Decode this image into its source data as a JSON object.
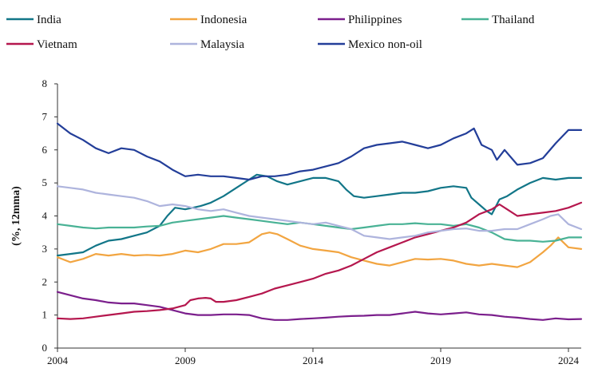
{
  "chart_data": {
    "type": "line",
    "title": "",
    "xlabel": "",
    "ylabel": "(%, 12mma)",
    "ylim": [
      0,
      8
    ],
    "xlim": [
      2004,
      2024.5
    ],
    "grid": false,
    "legend": "top",
    "yticks": [
      "0",
      "1",
      "2",
      "3",
      "4",
      "5",
      "6",
      "7",
      "8"
    ],
    "xticks": [
      {
        "value": 2004,
        "label": "2004"
      },
      {
        "value": 2009,
        "label": "2009"
      },
      {
        "value": 2014,
        "label": "2014"
      },
      {
        "value": 2019,
        "label": "2019"
      },
      {
        "value": 2024,
        "label": "2024"
      }
    ],
    "series": [
      {
        "name": "India",
        "color": "#127688",
        "x": [
          2004,
          2004.5,
          2005,
          2005.5,
          2006,
          2006.5,
          2007,
          2007.5,
          2008,
          2008.3,
          2008.6,
          2009,
          2009.3,
          2009.6,
          2010,
          2010.5,
          2011,
          2011.5,
          2011.8,
          2012.2,
          2012.6,
          2013,
          2013.5,
          2014,
          2014.5,
          2015,
          2015.3,
          2015.6,
          2016,
          2016.5,
          2017,
          2017.5,
          2018,
          2018.5,
          2019,
          2019.5,
          2020,
          2020.2,
          2020.5,
          2020.8,
          2021,
          2021.3,
          2021.6,
          2022,
          2022.5,
          2023,
          2023.5,
          2024,
          2024.5
        ],
        "y": [
          2.8,
          2.85,
          2.9,
          3.1,
          3.25,
          3.3,
          3.4,
          3.5,
          3.7,
          4.0,
          4.25,
          4.2,
          4.25,
          4.3,
          4.4,
          4.6,
          4.85,
          5.1,
          5.25,
          5.2,
          5.05,
          4.95,
          5.05,
          5.15,
          5.15,
          5.05,
          4.8,
          4.6,
          4.55,
          4.6,
          4.65,
          4.7,
          4.7,
          4.75,
          4.85,
          4.9,
          4.85,
          4.55,
          4.35,
          4.15,
          4.05,
          4.5,
          4.6,
          4.8,
          5.0,
          5.15,
          5.1,
          5.15,
          5.15
        ]
      },
      {
        "name": "Indonesia",
        "color": "#F2A541",
        "x": [
          2004,
          2004.5,
          2005,
          2005.5,
          2006,
          2006.5,
          2007,
          2007.5,
          2008,
          2008.5,
          2009,
          2009.5,
          2010,
          2010.5,
          2011,
          2011.5,
          2012,
          2012.3,
          2012.6,
          2013,
          2013.5,
          2014,
          2014.5,
          2015,
          2015.5,
          2016,
          2016.5,
          2017,
          2017.5,
          2018,
          2018.5,
          2019,
          2019.5,
          2020,
          2020.5,
          2021,
          2021.5,
          2022,
          2022.5,
          2023,
          2023.3,
          2023.6,
          2024,
          2024.5
        ],
        "y": [
          2.75,
          2.6,
          2.7,
          2.85,
          2.8,
          2.85,
          2.8,
          2.82,
          2.8,
          2.85,
          2.95,
          2.9,
          3.0,
          3.15,
          3.15,
          3.2,
          3.45,
          3.5,
          3.45,
          3.3,
          3.1,
          3.0,
          2.95,
          2.9,
          2.75,
          2.65,
          2.55,
          2.5,
          2.6,
          2.7,
          2.68,
          2.7,
          2.65,
          2.55,
          2.5,
          2.55,
          2.5,
          2.45,
          2.6,
          2.9,
          3.1,
          3.35,
          3.05,
          3.0
        ]
      },
      {
        "name": "Philippines",
        "color": "#7B1F8C",
        "x": [
          2004,
          2004.5,
          2005,
          2005.5,
          2006,
          2006.5,
          2007,
          2007.5,
          2008,
          2008.5,
          2009,
          2009.5,
          2010,
          2010.5,
          2011,
          2011.5,
          2012,
          2012.5,
          2013,
          2013.5,
          2014,
          2014.5,
          2015,
          2015.5,
          2016,
          2016.5,
          2017,
          2017.5,
          2018,
          2018.5,
          2019,
          2019.5,
          2020,
          2020.5,
          2021,
          2021.5,
          2022,
          2022.5,
          2023,
          2023.5,
          2024,
          2024.5
        ],
        "y": [
          1.7,
          1.6,
          1.5,
          1.45,
          1.38,
          1.35,
          1.35,
          1.3,
          1.25,
          1.15,
          1.05,
          1.0,
          1.0,
          1.02,
          1.02,
          1.0,
          0.9,
          0.85,
          0.85,
          0.88,
          0.9,
          0.92,
          0.95,
          0.97,
          0.98,
          1.0,
          1.0,
          1.05,
          1.1,
          1.05,
          1.02,
          1.05,
          1.08,
          1.02,
          1.0,
          0.95,
          0.92,
          0.88,
          0.85,
          0.9,
          0.87,
          0.88
        ]
      },
      {
        "name": "Thailand",
        "color": "#49B295",
        "x": [
          2004,
          2004.5,
          2005,
          2005.5,
          2006,
          2006.5,
          2007,
          2007.5,
          2008,
          2008.5,
          2009,
          2009.5,
          2010,
          2010.5,
          2011,
          2011.5,
          2012,
          2012.5,
          2013,
          2013.5,
          2014,
          2014.5,
          2015,
          2015.5,
          2016,
          2016.5,
          2017,
          2017.5,
          2018,
          2018.5,
          2019,
          2019.5,
          2020,
          2020.5,
          2021,
          2021.5,
          2022,
          2022.5,
          2023,
          2023.5,
          2024,
          2024.5
        ],
        "y": [
          3.75,
          3.7,
          3.65,
          3.62,
          3.65,
          3.65,
          3.65,
          3.68,
          3.7,
          3.8,
          3.85,
          3.9,
          3.95,
          4.0,
          3.95,
          3.9,
          3.85,
          3.8,
          3.75,
          3.8,
          3.75,
          3.7,
          3.65,
          3.6,
          3.65,
          3.7,
          3.75,
          3.75,
          3.78,
          3.75,
          3.75,
          3.7,
          3.75,
          3.65,
          3.5,
          3.3,
          3.25,
          3.25,
          3.22,
          3.25,
          3.35,
          3.35
        ]
      },
      {
        "name": "Vietnam",
        "color": "#B5174E",
        "x": [
          2004,
          2004.5,
          2005,
          2005.5,
          2006,
          2006.5,
          2007,
          2007.5,
          2008,
          2008.5,
          2009,
          2009.2,
          2009.5,
          2009.8,
          2010,
          2010.2,
          2010.5,
          2011,
          2011.5,
          2012,
          2012.5,
          2013,
          2013.5,
          2014,
          2014.5,
          2015,
          2015.5,
          2016,
          2016.5,
          2017,
          2017.5,
          2018,
          2018.5,
          2019,
          2019.5,
          2020,
          2020.5,
          2021,
          2021.3,
          2021.6,
          2022,
          2022.5,
          2023,
          2023.5,
          2024,
          2024.5
        ],
        "y": [
          0.9,
          0.88,
          0.9,
          0.95,
          1.0,
          1.05,
          1.1,
          1.12,
          1.15,
          1.2,
          1.3,
          1.45,
          1.5,
          1.52,
          1.5,
          1.4,
          1.4,
          1.45,
          1.55,
          1.65,
          1.8,
          1.9,
          2.0,
          2.1,
          2.25,
          2.35,
          2.5,
          2.7,
          2.9,
          3.05,
          3.2,
          3.35,
          3.45,
          3.55,
          3.65,
          3.8,
          4.05,
          4.2,
          4.35,
          4.2,
          4.0,
          4.05,
          4.1,
          4.15,
          4.25,
          4.4
        ]
      },
      {
        "name": "Malaysia",
        "color": "#AEB4DD",
        "x": [
          2004,
          2004.5,
          2005,
          2005.5,
          2006,
          2006.5,
          2007,
          2007.5,
          2008,
          2008.5,
          2009,
          2009.5,
          2010,
          2010.5,
          2011,
          2011.5,
          2012,
          2012.5,
          2013,
          2013.5,
          2014,
          2014.5,
          2015,
          2015.5,
          2016,
          2016.5,
          2017,
          2017.5,
          2018,
          2018.5,
          2019,
          2019.5,
          2020,
          2020.5,
          2021,
          2021.5,
          2022,
          2022.5,
          2023,
          2023.3,
          2023.6,
          2024,
          2024.5
        ],
        "y": [
          4.9,
          4.85,
          4.8,
          4.7,
          4.65,
          4.6,
          4.55,
          4.45,
          4.3,
          4.35,
          4.3,
          4.2,
          4.15,
          4.2,
          4.1,
          4.0,
          3.95,
          3.9,
          3.85,
          3.8,
          3.75,
          3.8,
          3.7,
          3.6,
          3.4,
          3.35,
          3.3,
          3.35,
          3.4,
          3.5,
          3.55,
          3.6,
          3.62,
          3.55,
          3.55,
          3.6,
          3.6,
          3.75,
          3.9,
          4.0,
          4.05,
          3.75,
          3.6
        ]
      },
      {
        "name": "Mexico non-oil",
        "color": "#233E99",
        "x": [
          2004,
          2004.5,
          2005,
          2005.5,
          2006,
          2006.5,
          2007,
          2007.5,
          2008,
          2008.5,
          2009,
          2009.5,
          2010,
          2010.5,
          2011,
          2011.5,
          2012,
          2012.5,
          2013,
          2013.5,
          2014,
          2014.5,
          2015,
          2015.5,
          2016,
          2016.5,
          2017,
          2017.5,
          2018,
          2018.5,
          2019,
          2019.5,
          2020,
          2020.3,
          2020.6,
          2021,
          2021.2,
          2021.5,
          2022,
          2022.5,
          2023,
          2023.5,
          2024,
          2024.5
        ],
        "y": [
          6.8,
          6.5,
          6.3,
          6.05,
          5.9,
          6.05,
          6.0,
          5.8,
          5.65,
          5.4,
          5.2,
          5.25,
          5.2,
          5.2,
          5.15,
          5.1,
          5.2,
          5.2,
          5.25,
          5.35,
          5.4,
          5.5,
          5.6,
          5.8,
          6.05,
          6.15,
          6.2,
          6.25,
          6.15,
          6.05,
          6.15,
          6.35,
          6.5,
          6.65,
          6.15,
          6.0,
          5.7,
          6.0,
          5.55,
          5.6,
          5.75,
          6.2,
          6.6,
          6.6
        ]
      }
    ]
  }
}
